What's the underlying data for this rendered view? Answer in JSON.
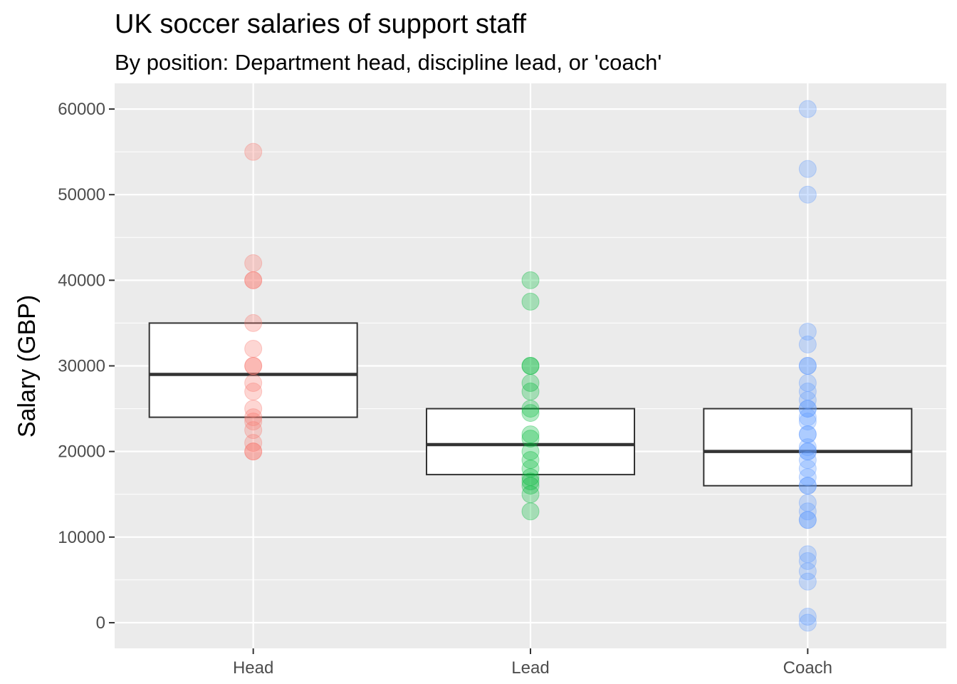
{
  "chart_data": {
    "type": "box",
    "title": "UK soccer salaries of support staff",
    "subtitle": "By position: Department head, discipline lead, or 'coach'",
    "xlabel": "",
    "ylabel": "Salary (GBP)",
    "ylim": [
      -3000,
      63000
    ],
    "yticks": [
      0,
      10000,
      20000,
      30000,
      40000,
      50000,
      60000
    ],
    "ytick_labels": [
      "0",
      "10000",
      "20000",
      "30000",
      "40000",
      "50000",
      "60000"
    ],
    "categories": [
      "Head",
      "Lead",
      "Coach"
    ],
    "grid": true,
    "legend": "none",
    "background": "#ebebeb",
    "colors": [
      "#f8766d",
      "#00ba38",
      "#619cff"
    ],
    "boxes": [
      {
        "category": "Head",
        "q1": 24000,
        "median": 29000,
        "q3": 35000
      },
      {
        "category": "Lead",
        "q1": 17300,
        "median": 20800,
        "q3": 25000
      },
      {
        "category": "Coach",
        "q1": 16000,
        "median": 20000,
        "q3": 25000
      }
    ],
    "points": [
      {
        "category": "Head",
        "values": [
          55000,
          42000,
          40000,
          40000,
          35000,
          32000,
          30000,
          30000,
          28000,
          27000,
          25000,
          24000,
          23500,
          22500,
          21000,
          20000,
          20000
        ]
      },
      {
        "category": "Lead",
        "values": [
          40000,
          37500,
          30000,
          30000,
          28000,
          27000,
          25000,
          24500,
          22000,
          21500,
          20000,
          19000,
          18000,
          17000,
          16500,
          16000,
          15000,
          13000
        ]
      },
      {
        "category": "Coach",
        "values": [
          60000,
          53000,
          50000,
          34000,
          32500,
          30000,
          30000,
          28000,
          27000,
          26000,
          25000,
          25000,
          24000,
          23500,
          22000,
          22000,
          20500,
          20000,
          20000,
          19000,
          18000,
          17000,
          16000,
          16000,
          14000,
          13000,
          12000,
          12000,
          8000,
          7200,
          6000,
          4800,
          700,
          0
        ]
      }
    ]
  }
}
